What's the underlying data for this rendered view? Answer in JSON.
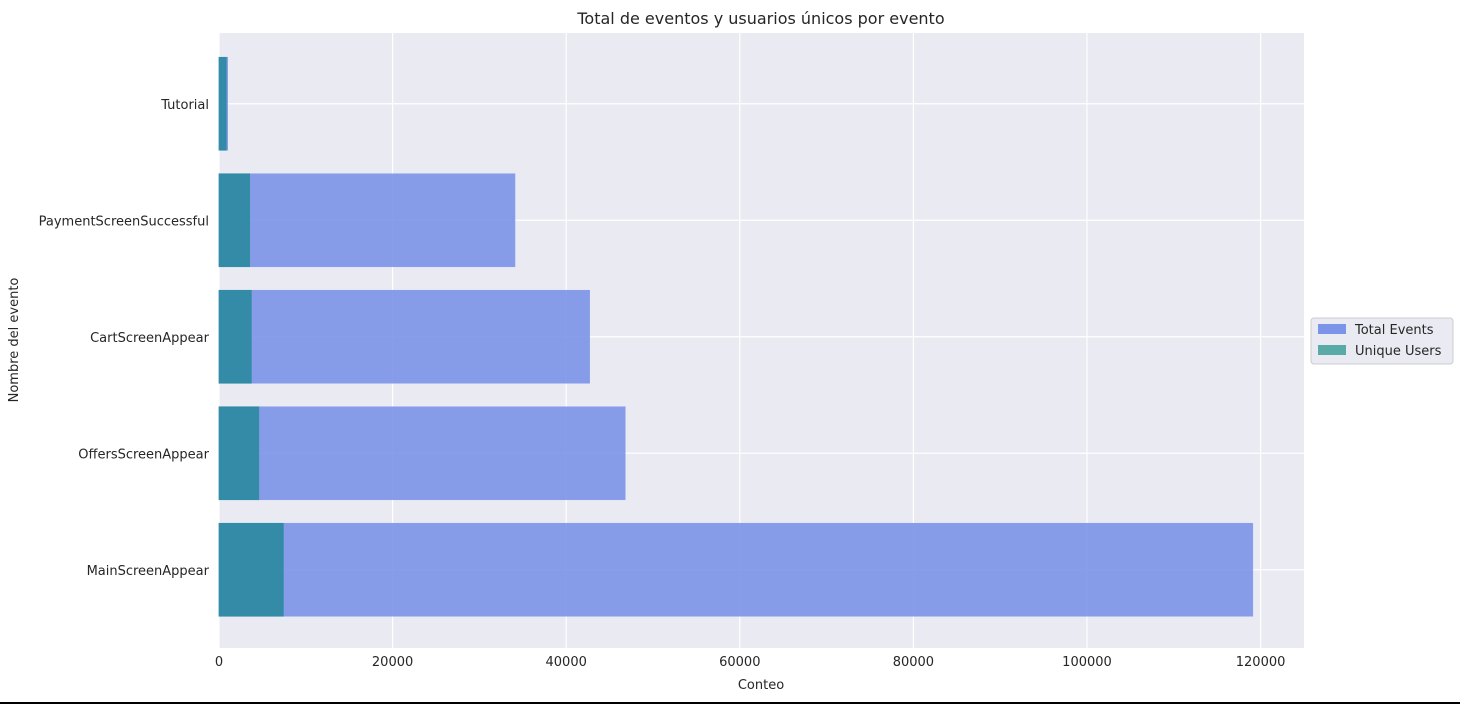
{
  "chart_data": {
    "type": "bar",
    "orientation": "horizontal",
    "title": "Total de eventos y usuarios únicos por evento",
    "xlabel": "Conteo",
    "ylabel": "Nombre del evento",
    "categories": [
      "Tutorial",
      "PaymentScreenSuccessful",
      "CartScreenAppear",
      "OffersScreenAppear",
      "MainScreenAppear"
    ],
    "series": [
      {
        "name": "Total Events",
        "values": [
          1000,
          34100,
          42700,
          46800,
          119100
        ],
        "color": "#7b93e8"
      },
      {
        "name": "Unique Users",
        "values": [
          840,
          3540,
          3730,
          4590,
          7420
        ],
        "color": "#2a8aa0"
      }
    ],
    "xlim": [
      0,
      125000
    ],
    "xticks": [
      0,
      20000,
      40000,
      60000,
      80000,
      100000,
      120000
    ],
    "grid": true,
    "legend": "center-right",
    "background": "#eaeaf2"
  }
}
